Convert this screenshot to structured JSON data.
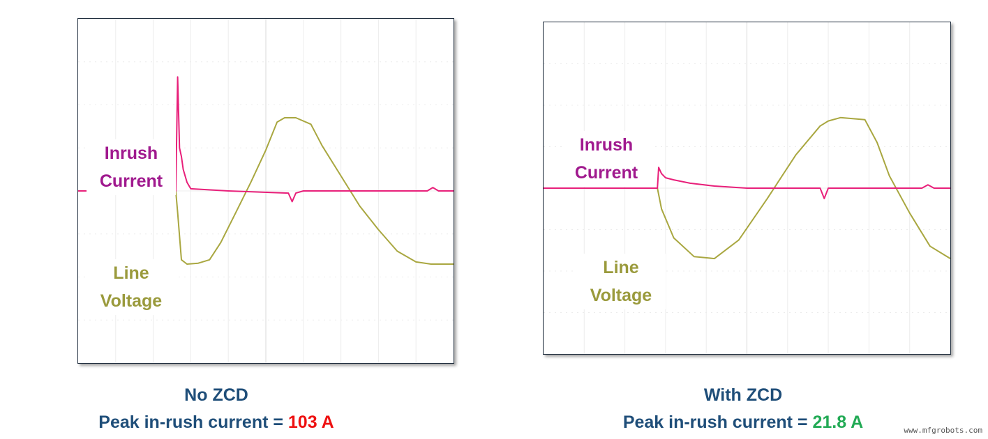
{
  "colors": {
    "current": "#e8207a",
    "voltage": "#a9a740",
    "current_label": "#a0198e",
    "voltage_label": "#9a9a3c",
    "caption": "#1f4e79",
    "bad": "#ee1111",
    "good": "#22aa55"
  },
  "chart_data": [
    {
      "type": "line",
      "title": "No ZCD",
      "xlim": [
        0,
        10
      ],
      "ylim": [
        -4,
        4
      ],
      "grid": true,
      "series": [
        {
          "name": "Inrush Current",
          "x": [
            0,
            2.6,
            2.65,
            2.7,
            2.75,
            2.8,
            2.9,
            3.0,
            4.0,
            5.6,
            5.7,
            5.8,
            6.0,
            9.3,
            9.45,
            9.6,
            10
          ],
          "y": [
            0,
            0,
            2.65,
            1.0,
            0.8,
            0.5,
            0.2,
            0.05,
            0.0,
            -0.05,
            -0.25,
            -0.05,
            0.0,
            0.0,
            0.08,
            0.0,
            0.0
          ]
        },
        {
          "name": "Line Voltage",
          "x": [
            0,
            2.6,
            2.65,
            2.75,
            2.9,
            3.2,
            3.5,
            3.8,
            4.2,
            4.6,
            5.0,
            5.3,
            5.5,
            5.8,
            6.2,
            6.5,
            7.0,
            7.5,
            8.0,
            8.5,
            9.0,
            9.4,
            10
          ],
          "y": [
            0,
            0,
            -0.5,
            -1.6,
            -1.7,
            -1.68,
            -1.6,
            -1.2,
            -0.5,
            0.2,
            0.95,
            1.6,
            1.7,
            1.7,
            1.55,
            1.05,
            0.35,
            -0.35,
            -0.9,
            -1.4,
            -1.65,
            -1.7,
            -1.7
          ]
        }
      ]
    },
    {
      "type": "line",
      "title": "With ZCD",
      "xlim": [
        0,
        10
      ],
      "ylim": [
        -4,
        4
      ],
      "grid": true,
      "series": [
        {
          "name": "Inrush Current",
          "x": [
            0,
            2.8,
            2.83,
            2.9,
            3.0,
            3.2,
            3.6,
            4.2,
            5.0,
            6.8,
            6.9,
            7.0,
            9.3,
            9.45,
            9.6,
            10
          ],
          "y": [
            0,
            0,
            0.5,
            0.35,
            0.25,
            0.2,
            0.12,
            0.05,
            0.0,
            0.0,
            -0.25,
            0.0,
            0.0,
            0.08,
            0.0,
            0.0
          ]
        },
        {
          "name": "Line Voltage",
          "x": [
            0,
            2.8,
            2.9,
            3.2,
            3.7,
            4.2,
            4.8,
            5.5,
            6.2,
            6.8,
            7.0,
            7.3,
            7.9,
            8.2,
            8.5,
            9.0,
            9.5,
            10
          ],
          "y": [
            0,
            0,
            -0.5,
            -1.2,
            -1.65,
            -1.7,
            -1.25,
            -0.25,
            0.8,
            1.5,
            1.62,
            1.7,
            1.65,
            1.1,
            0.3,
            -0.6,
            -1.4,
            -1.7
          ]
        }
      ]
    }
  ],
  "panels": [
    {
      "labels": {
        "current": "Inrush\nCurrent",
        "voltage": "Line\nVoltage"
      },
      "caption_title": "No ZCD",
      "caption_prefix": "Peak in-rush current = ",
      "caption_value": "103 A"
    },
    {
      "labels": {
        "current": "Inrush\nCurrent",
        "voltage": "Line\nVoltage"
      },
      "caption_title": "With ZCD",
      "caption_prefix": "Peak in-rush current = ",
      "caption_value": "21.8 A"
    }
  ],
  "watermark": "www.mfgrobots.com"
}
